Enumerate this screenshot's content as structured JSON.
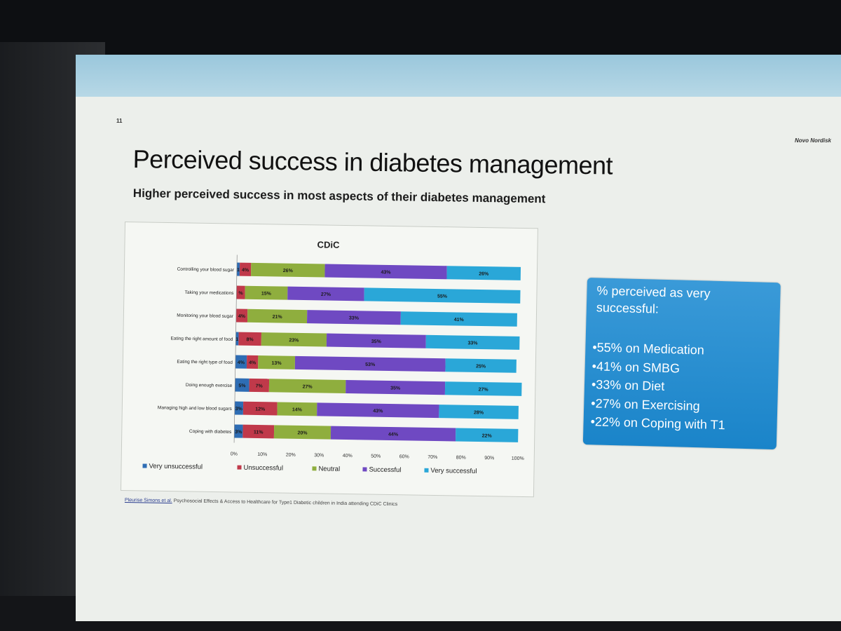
{
  "slide": {
    "page_number": "11",
    "brand": "Novo Nordisk",
    "title": "Perceived success in diabetes management",
    "subtitle": "Higher perceived success in most aspects of their diabetes management"
  },
  "callout": {
    "heading": "% perceived as very successful:",
    "items": [
      "•55% on Medication",
      "•41% on SMBG",
      "•33% on Diet",
      "•27% on Exercising",
      "•22% on Coping with T1"
    ]
  },
  "source": {
    "author": "Pleurise Simons et al.",
    "text": "Psychosocial Effects & Access to Healthcare for Type1 Diabetic children in India attending CDiC Clinics"
  },
  "chart_data": {
    "type": "bar",
    "orientation": "horizontal",
    "stacked": "percent",
    "title": "CDiC",
    "categories": [
      "Controlling your blood sugar",
      "Taking your medications",
      "Monitoring your blood sugar",
      "Eating the right amount of food",
      "Eating the right type of food",
      "Doing enough exercise",
      "Managing high and low blood sugars",
      "Coping with diabetes"
    ],
    "series": [
      {
        "name": "Very unsuccessful",
        "color": "#2e6db4",
        "values": [
          1,
          0,
          0,
          1,
          4,
          5,
          3,
          3
        ],
        "labels": [
          "1",
          "0",
          "0",
          "1",
          "4%",
          "5%",
          "3%",
          "3%"
        ]
      },
      {
        "name": "Unsuccessful",
        "color": "#c0394a",
        "values": [
          4,
          3,
          4,
          8,
          4,
          7,
          12,
          11
        ],
        "labels": [
          "4%",
          "%",
          "4%",
          "8%",
          "4%",
          "7%",
          "12%",
          "11%"
        ]
      },
      {
        "name": "Neutral",
        "color": "#8fae3e",
        "values": [
          26,
          15,
          21,
          23,
          13,
          27,
          14,
          20
        ],
        "labels": [
          "26%",
          "15%",
          "21%",
          "23%",
          "13%",
          "27%",
          "14%",
          "20%"
        ]
      },
      {
        "name": "Successful",
        "color": "#6f49c2",
        "values": [
          43,
          27,
          33,
          35,
          53,
          35,
          43,
          44
        ],
        "labels": [
          "43%",
          "27%",
          "33%",
          "35%",
          "53%",
          "35%",
          "43%",
          "44%"
        ]
      },
      {
        "name": "Very successful",
        "color": "#2aa7d8",
        "values": [
          26,
          55,
          41,
          33,
          25,
          27,
          28,
          22
        ],
        "labels": [
          "26%",
          "55%",
          "41%",
          "33%",
          "25%",
          "27%",
          "28%",
          "22%"
        ]
      }
    ],
    "xticks": [
      "0%",
      "10%",
      "20%",
      "30%",
      "40%",
      "50%",
      "60%",
      "70%",
      "80%",
      "90%",
      "100%"
    ],
    "xlim": [
      0,
      100
    ],
    "legend_position": "bottom",
    "grid": false
  }
}
